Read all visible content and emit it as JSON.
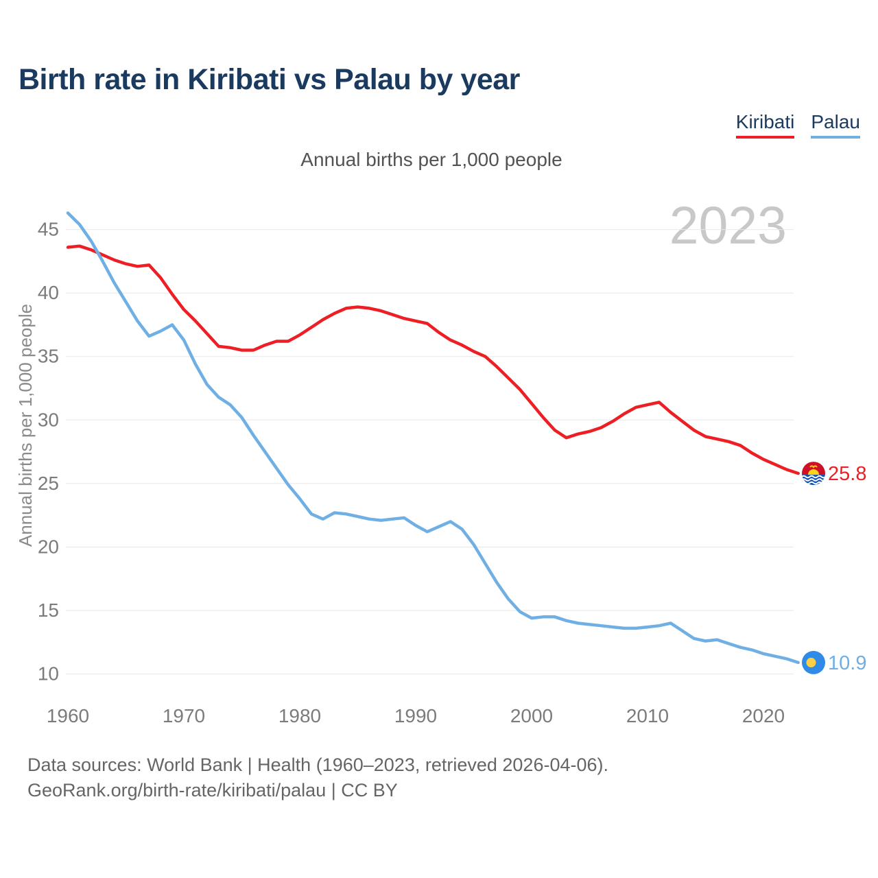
{
  "header": {
    "title": "Birth rate in Kiribati vs Palau by year"
  },
  "footer": {
    "line1": "Data sources: World Bank | Health (1960–2023, retrieved 2026-04-06).",
    "line2": "GeoRank.org/birth-rate/kiribati/palau | CC BY"
  },
  "chart_data": {
    "type": "line",
    "subtitle": "Annual births per 1,000 people",
    "ylabel": "Annual births per 1,000 people",
    "watermark": "2023",
    "x_start": 1960,
    "x_end": 2023,
    "xticks": [
      1960,
      1970,
      1980,
      1990,
      2000,
      2010,
      2020
    ],
    "yticks": [
      45,
      40,
      35,
      30,
      25,
      20,
      15,
      10
    ],
    "ylim": [
      10,
      46.5
    ],
    "grid": "horizontal",
    "legend_position": "top-right",
    "colors": {
      "kiribati": "#ED1F24",
      "palau": "#6FAFE4",
      "title": "#1b3a5f",
      "gridline": "#e7e7e7",
      "tick_text": "#7b7b7b",
      "watermark_text": "#c8c8c8"
    },
    "series": [
      {
        "name": "Kiribati",
        "color": "#ED1F24",
        "flag": "kiribati",
        "end_label": "25.8",
        "values": [
          43.6,
          43.7,
          43.4,
          43.0,
          42.6,
          42.3,
          42.1,
          42.2,
          41.2,
          39.9,
          38.7,
          37.8,
          36.8,
          35.8,
          35.7,
          35.5,
          35.5,
          35.9,
          36.2,
          36.2,
          36.7,
          37.3,
          37.9,
          38.4,
          38.8,
          38.9,
          38.8,
          38.6,
          38.3,
          38.0,
          37.8,
          37.6,
          36.9,
          36.3,
          35.9,
          35.4,
          35.0,
          34.2,
          33.3,
          32.4,
          31.3,
          30.2,
          29.2,
          28.6,
          28.9,
          29.1,
          29.4,
          29.9,
          30.5,
          31.0,
          31.2,
          31.4,
          30.6,
          29.9,
          29.2,
          28.7,
          28.5,
          28.3,
          28.0,
          27.4,
          26.9,
          26.5,
          26.1,
          25.8
        ]
      },
      {
        "name": "Palau",
        "color": "#6FAFE4",
        "flag": "palau",
        "end_label": "10.9",
        "values": [
          46.3,
          45.4,
          44.1,
          42.5,
          40.8,
          39.3,
          37.8,
          36.6,
          37.0,
          37.5,
          36.3,
          34.4,
          32.8,
          31.8,
          31.2,
          30.2,
          28.8,
          27.5,
          26.2,
          24.9,
          23.8,
          22.6,
          22.2,
          22.7,
          22.6,
          22.4,
          22.2,
          22.1,
          22.2,
          22.3,
          21.7,
          21.2,
          21.6,
          22.0,
          21.4,
          20.2,
          18.7,
          17.2,
          15.9,
          14.9,
          14.4,
          14.5,
          14.5,
          14.2,
          14.0,
          13.9,
          13.8,
          13.7,
          13.6,
          13.6,
          13.7,
          13.8,
          14.0,
          13.4,
          12.8,
          12.6,
          12.7,
          12.4,
          12.1,
          11.9,
          11.6,
          11.4,
          11.2,
          10.9
        ]
      }
    ]
  }
}
